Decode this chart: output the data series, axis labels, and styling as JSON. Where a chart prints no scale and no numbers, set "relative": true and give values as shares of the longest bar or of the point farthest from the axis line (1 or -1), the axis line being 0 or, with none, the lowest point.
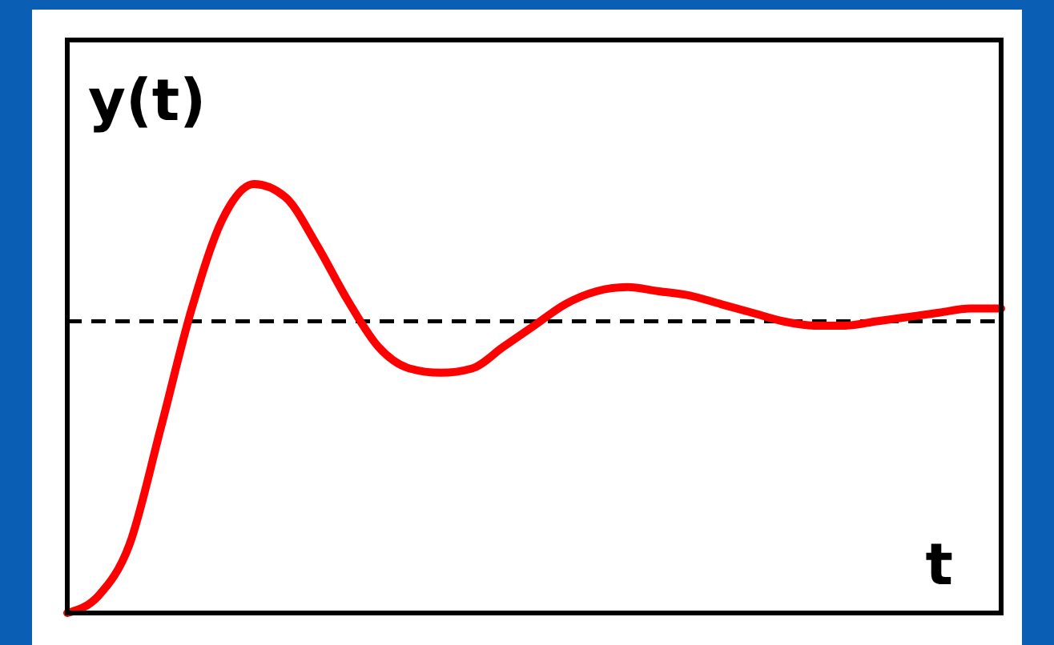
{
  "chart_data": {
    "type": "line",
    "relative": true,
    "ylabel": "y(t)",
    "xlabel": "t",
    "categories": [
      null,
      null,
      null,
      null,
      null,
      null,
      null,
      null,
      null,
      null,
      null,
      null,
      null,
      null,
      null,
      null,
      null,
      null,
      null,
      null,
      null,
      null,
      null,
      null,
      null,
      null,
      null,
      null,
      null,
      null,
      null
    ],
    "series": [
      {
        "color": "#ff0000",
        "values": [
          0,
          0.04,
          0.16,
          0.43,
          0.71,
          0.92,
          1,
          0.97,
          0.86,
          0.73,
          0.62,
          0.57,
          0.56,
          0.57,
          0.62,
          0.67,
          0.72,
          0.75,
          0.76,
          0.75,
          0.74,
          0.72,
          0.7,
          0.68,
          0.67,
          0.67,
          0.68,
          0.69,
          0.7,
          0.71,
          0.71
        ]
      }
    ],
    "ref_lines": [
      {
        "axis": "y",
        "value": 0.68,
        "color": "#000000",
        "line_style": "dashed"
      }
    ]
  }
}
